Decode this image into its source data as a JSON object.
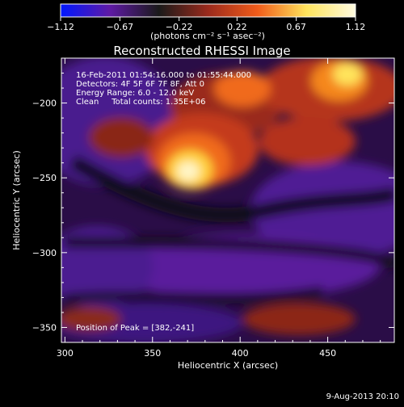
{
  "chart_data": {
    "type": "heatmap",
    "title": "Reconstructed RHESSI Image",
    "xlabel": "Heliocentric X (arcsec)",
    "ylabel": "Heliocentric Y (arcsec)",
    "xlim": [
      298,
      488
    ],
    "ylim": [
      -360,
      -170
    ],
    "x_ticks": [
      300,
      350,
      400,
      450
    ],
    "x_tick_labels": [
      "300",
      "350",
      "400",
      "450"
    ],
    "y_ticks": [
      -200,
      -250,
      -300,
      -350
    ],
    "y_tick_labels": [
      "-200",
      "-250",
      "-300",
      "-350"
    ],
    "colorbar": {
      "ticks": [
        -1.12,
        -0.67,
        -0.22,
        0.22,
        0.67,
        1.12
      ],
      "tick_labels": [
        "-1.12",
        "-0.67",
        "-0.22",
        "0.22",
        "0.67",
        "1.12"
      ],
      "unit_label": "(photons cm⁻² s⁻¹ asec⁻²)",
      "colors": [
        "#0018ff",
        "#5f1aa6",
        "#1a1a1a",
        "#9a2a1c",
        "#f05b1a",
        "#ffe45c",
        "#fffbe0"
      ]
    },
    "peak": {
      "x": 382,
      "y": -241,
      "value": 1.12
    },
    "annotations": [
      "16-Feb-2011 01:54:16.000 to 01:55:44.000",
      "Detectors: 4F 5F 6F 7F 8F, Att 0",
      "Energy Range: 6.0 - 12.0 keV",
      "Clean     Total counts: 1.35E+06",
      "Position of Peak = [382,-241]"
    ],
    "timestamp": "9-Aug-2013 20:10"
  }
}
